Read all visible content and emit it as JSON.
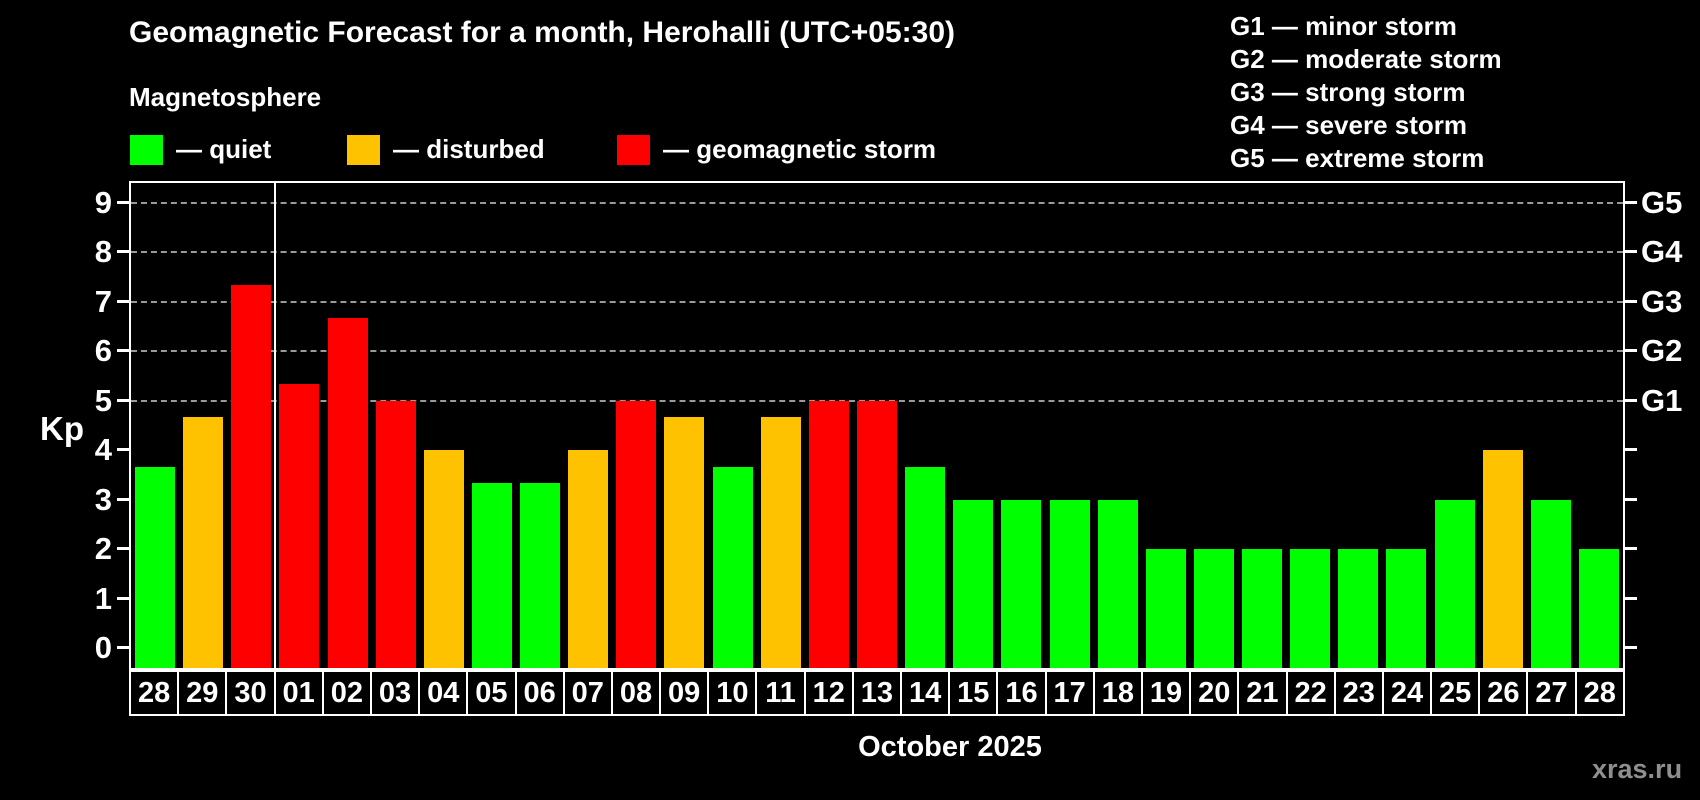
{
  "title": "Geomagnetic Forecast for a month, Herohalli (UTC+05:30)",
  "subtitle": "Magnetosphere",
  "legend": {
    "quiet_label": "— quiet",
    "disturbed_label": "— disturbed",
    "storm_label": "— geomagnetic storm"
  },
  "storm_scale_legend": [
    "G1 — minor storm",
    "G2 — moderate storm",
    "G3 — strong storm",
    "G4 — severe storm",
    "G5 — extreme storm"
  ],
  "axis": {
    "y_label": "Kp",
    "y_ticks": [
      0,
      1,
      2,
      3,
      4,
      5,
      6,
      7,
      8,
      9
    ],
    "x_label": "October 2025",
    "right_axis": [
      {
        "kp": 5,
        "label": "G1"
      },
      {
        "kp": 6,
        "label": "G2"
      },
      {
        "kp": 7,
        "label": "G3"
      },
      {
        "kp": 8,
        "label": "G4"
      },
      {
        "kp": 9,
        "label": "G5"
      }
    ]
  },
  "watermark": "xras.ru",
  "colors": {
    "quiet": "#00ff00",
    "disturbed": "#ffc200",
    "storm": "#ff0000",
    "background": "#000000",
    "grid": "#9a9a9a",
    "text": "#ffffff"
  },
  "chart_data": {
    "type": "bar",
    "title": "Geomagnetic Forecast for a month, Herohalli (UTC+05:30)",
    "xlabel": "October 2025",
    "ylabel": "Kp",
    "ylim": [
      0,
      9
    ],
    "grid": "dashed horizontal at Kp 5-9 only",
    "gridlines_at": [
      5,
      6,
      7,
      8,
      9
    ],
    "month_separator_after_index": 2,
    "legend_position": "top-left",
    "categories": [
      "28",
      "29",
      "30",
      "01",
      "02",
      "03",
      "04",
      "05",
      "06",
      "07",
      "08",
      "09",
      "10",
      "11",
      "12",
      "13",
      "14",
      "15",
      "16",
      "17",
      "18",
      "19",
      "20",
      "21",
      "22",
      "23",
      "24",
      "25",
      "26",
      "27",
      "28"
    ],
    "values": [
      3.67,
      4.67,
      7.33,
      5.33,
      6.67,
      5,
      4,
      3.33,
      3.33,
      4,
      5,
      4.67,
      3.67,
      4.67,
      5,
      5,
      3.67,
      3,
      3,
      3,
      3,
      2,
      2,
      2,
      2,
      2,
      2,
      3,
      4,
      3,
      2
    ],
    "bar_categories": [
      "quiet",
      "disturbed",
      "storm",
      "storm",
      "storm",
      "storm",
      "disturbed",
      "quiet",
      "quiet",
      "disturbed",
      "storm",
      "disturbed",
      "quiet",
      "disturbed",
      "storm",
      "storm",
      "quiet",
      "quiet",
      "quiet",
      "quiet",
      "quiet",
      "quiet",
      "quiet",
      "quiet",
      "quiet",
      "quiet",
      "quiet",
      "quiet",
      "disturbed",
      "quiet",
      "quiet"
    ]
  }
}
